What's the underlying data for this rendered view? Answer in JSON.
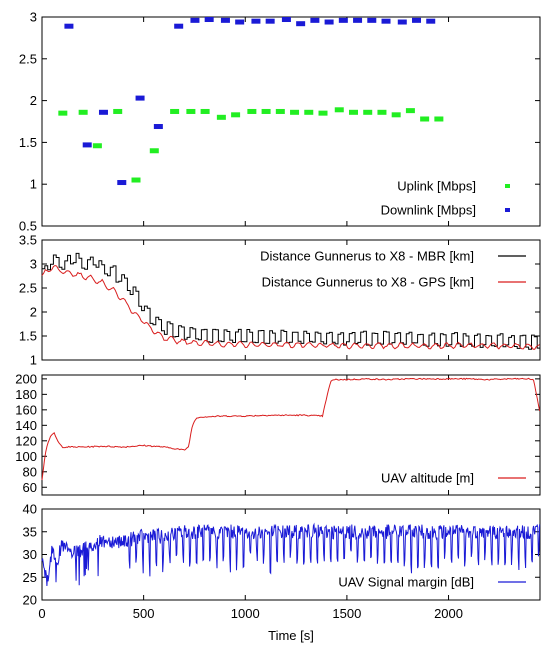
{
  "chart_data": [
    {
      "type": "scatter",
      "ylim": [
        0.5,
        3
      ],
      "yticks": [
        "0.5",
        "1",
        "1.5",
        "2",
        "2.5",
        "3"
      ],
      "series": [
        {
          "name": "Uplink [Mbps]",
          "color": "#22ee22",
          "x": [
            100,
            200,
            270,
            370,
            460,
            550,
            650,
            730,
            800,
            880,
            950,
            1030,
            1100,
            1170,
            1240,
            1310,
            1380,
            1460,
            1530,
            1600,
            1670,
            1740,
            1810,
            1880,
            1950
          ],
          "y": [
            1.85,
            1.86,
            1.46,
            1.87,
            1.05,
            1.4,
            1.87,
            1.87,
            1.87,
            1.8,
            1.83,
            1.87,
            1.87,
            1.87,
            1.86,
            1.86,
            1.85,
            1.89,
            1.86,
            1.86,
            1.86,
            1.83,
            1.88,
            1.78,
            1.78
          ]
        },
        {
          "name": "Downlink [Mbps]",
          "color": "#1a1ad6",
          "x": [
            130,
            220,
            300,
            390,
            480,
            570,
            670,
            750,
            820,
            900,
            970,
            1050,
            1120,
            1200,
            1270,
            1340,
            1410,
            1480,
            1550,
            1620,
            1690,
            1770,
            1840,
            1910
          ],
          "y": [
            2.89,
            1.47,
            1.86,
            1.02,
            2.03,
            1.69,
            2.89,
            2.96,
            2.97,
            2.96,
            2.94,
            2.95,
            2.95,
            2.97,
            2.92,
            2.96,
            2.94,
            2.96,
            2.96,
            2.96,
            2.95,
            2.94,
            2.96,
            2.95
          ]
        }
      ]
    },
    {
      "type": "line",
      "ylim": [
        1,
        3.5
      ],
      "yticks": [
        "1",
        "1.5",
        "2",
        "2.5",
        "3",
        "3.5"
      ],
      "series": [
        {
          "name": "Distance Gunnerus to X8 - MBR [km]",
          "color": "#000000",
          "x": [
            0,
            50,
            100,
            150,
            200,
            250,
            300,
            350,
            400,
            450,
            500,
            550,
            600,
            700,
            800,
            900,
            1000,
            1200,
            1400,
            1600,
            1800,
            2000,
            2200,
            2450
          ],
          "y": [
            2.75,
            3.05,
            2.9,
            3.1,
            2.95,
            3.0,
            2.85,
            2.75,
            2.6,
            2.3,
            2.0,
            1.75,
            1.6,
            1.5,
            1.45,
            1.45,
            1.42,
            1.42,
            1.4,
            1.38,
            1.38,
            1.36,
            1.34,
            1.3
          ]
        },
        {
          "name": "Distance Gunnerus to X8 - GPS [km]",
          "color": "#d91e1e",
          "x": [
            0,
            50,
            100,
            150,
            200,
            250,
            300,
            350,
            400,
            450,
            500,
            550,
            600,
            700,
            800,
            900,
            1000,
            1200,
            1400,
            1600,
            1800,
            2000,
            2200,
            2450
          ],
          "y": [
            2.75,
            2.95,
            2.85,
            2.8,
            2.75,
            2.7,
            2.6,
            2.45,
            2.25,
            2.0,
            1.8,
            1.6,
            1.45,
            1.38,
            1.35,
            1.33,
            1.32,
            1.32,
            1.3,
            1.3,
            1.3,
            1.3,
            1.3,
            1.28
          ]
        }
      ]
    },
    {
      "type": "line",
      "ylim": [
        50,
        205
      ],
      "yticks": [
        "60",
        "80",
        "100",
        "120",
        "140",
        "160",
        "180",
        "200"
      ],
      "series": [
        {
          "name": "UAV altitude [m]",
          "color": "#d91e1e",
          "x": [
            0,
            20,
            40,
            60,
            80,
            100,
            200,
            300,
            400,
            500,
            550,
            600,
            650,
            700,
            720,
            740,
            760,
            800,
            900,
            1000,
            1100,
            1200,
            1300,
            1380,
            1400,
            1420,
            1440,
            1500,
            1600,
            1700,
            1800,
            1900,
            2000,
            2100,
            2200,
            2300,
            2400,
            2420,
            2450
          ],
          "y": [
            70,
            110,
            125,
            130,
            118,
            112,
            112,
            113,
            112,
            114,
            113,
            112,
            110,
            108,
            112,
            140,
            150,
            151,
            152,
            152,
            153,
            153,
            153,
            152,
            175,
            197,
            199,
            199,
            200,
            199,
            200,
            200,
            200,
            200,
            199,
            200,
            200,
            198,
            155
          ]
        }
      ]
    },
    {
      "type": "line",
      "ylim": [
        20,
        40
      ],
      "yticks": [
        "20",
        "25",
        "30",
        "35",
        "40"
      ],
      "xlabel": "Time [s]",
      "xlim": [
        0,
        2450
      ],
      "xticks": [
        "0",
        "500",
        "1000",
        "1500",
        "2000"
      ],
      "series": [
        {
          "name": "UAV Signal margin [dB]",
          "color": "#1a1ad6",
          "x": [
            0,
            25,
            50,
            75,
            100,
            150,
            200,
            250,
            300,
            400,
            500,
            600,
            700,
            800,
            900,
            1000,
            1100,
            1200,
            1300,
            1400,
            1500,
            1600,
            1700,
            1800,
            1900,
            2000,
            2100,
            2200,
            2300,
            2400,
            2450
          ],
          "y": [
            30,
            24,
            31,
            29,
            32,
            30,
            31,
            32,
            33,
            33,
            34,
            34,
            35,
            35,
            35,
            35,
            35,
            35,
            35,
            35,
            35,
            35,
            35,
            35,
            35,
            35,
            35,
            35,
            35,
            35,
            36
          ],
          "noise": "high-frequency fluctuation with periodic dips to ~27-30 dB"
        }
      ]
    }
  ]
}
